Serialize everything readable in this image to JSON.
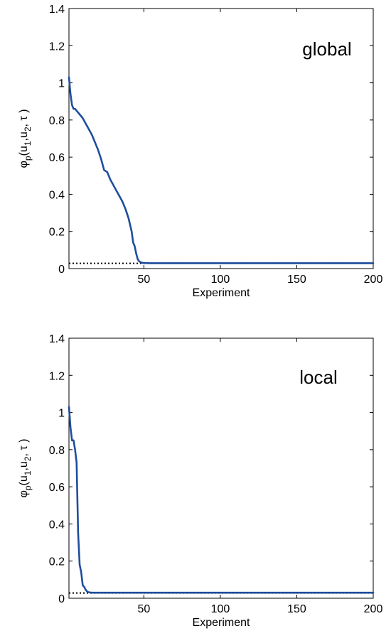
{
  "chart_data": [
    {
      "type": "line",
      "annotation": "global",
      "xlabel": "Experiment",
      "ylabel": "φp(u1,u2, τ)",
      "ylabel_parts": {
        "base": "φ",
        "sub_p": "p",
        "open": "(u",
        "sub_1": "1",
        "mid": ",u",
        "sub_2": "2",
        "close": ", τ )"
      },
      "xlim": [
        1,
        200
      ],
      "ylim": [
        0,
        1.4
      ],
      "xticks": [
        50,
        100,
        150,
        200
      ],
      "xtick_labels": [
        "50",
        "100",
        "150",
        "200"
      ],
      "yticks": [
        0,
        0.2,
        0.4,
        0.6,
        0.8,
        1,
        1.2,
        1.4
      ],
      "ytick_labels": [
        "0",
        "0.2",
        "0.4",
        "0.6",
        "0.8",
        "1",
        "1.2",
        "1.4"
      ],
      "grid": false,
      "reference_line": {
        "y": 0.028,
        "style": "dotted",
        "color": "#000000"
      },
      "series": [
        {
          "color": "#1f4e9c",
          "x": [
            1,
            2,
            3,
            4,
            5,
            6,
            7,
            8,
            10,
            12,
            14,
            16,
            18,
            20,
            22,
            24,
            26,
            27,
            28,
            30,
            32,
            34,
            36,
            38,
            40,
            42,
            43,
            44,
            45,
            46,
            47,
            48,
            49,
            50,
            51,
            52,
            53,
            54,
            56,
            60,
            70,
            80,
            100,
            150,
            200
          ],
          "y": [
            1.03,
            0.94,
            0.88,
            0.86,
            0.86,
            0.85,
            0.84,
            0.83,
            0.81,
            0.78,
            0.75,
            0.72,
            0.68,
            0.64,
            0.59,
            0.53,
            0.52,
            0.5,
            0.48,
            0.45,
            0.42,
            0.39,
            0.36,
            0.32,
            0.27,
            0.2,
            0.14,
            0.12,
            0.08,
            0.05,
            0.038,
            0.034,
            0.031,
            0.03,
            0.03,
            0.03,
            0.029,
            0.029,
            0.029,
            0.029,
            0.029,
            0.029,
            0.029,
            0.029,
            0.029
          ]
        }
      ]
    },
    {
      "type": "line",
      "annotation": "local",
      "xlabel": "Experiment",
      "ylabel": "φp(u1,u2, τ)",
      "ylabel_parts": {
        "base": "φ",
        "sub_p": "p",
        "open": "(u",
        "sub_1": "1",
        "mid": ",u",
        "sub_2": "2",
        "close": ", τ )"
      },
      "xlim": [
        1,
        200
      ],
      "ylim": [
        0,
        1.4
      ],
      "xticks": [
        50,
        100,
        150,
        200
      ],
      "xtick_labels": [
        "50",
        "100",
        "150",
        "200"
      ],
      "yticks": [
        0,
        0.2,
        0.4,
        0.6,
        0.8,
        1,
        1.2,
        1.4
      ],
      "ytick_labels": [
        "0",
        "0.2",
        "0.4",
        "0.6",
        "0.8",
        "1",
        "1.2",
        "1.4"
      ],
      "grid": false,
      "reference_line": {
        "y": 0.028,
        "style": "dotted",
        "color": "#000000"
      },
      "series": [
        {
          "color": "#1f4e9c",
          "x": [
            1,
            2,
            3,
            4,
            5,
            6,
            7,
            8,
            9,
            10,
            11,
            12,
            13,
            14,
            16,
            20,
            30,
            50,
            100,
            150,
            200
          ],
          "y": [
            1.03,
            0.92,
            0.85,
            0.85,
            0.8,
            0.73,
            0.35,
            0.18,
            0.14,
            0.07,
            0.06,
            0.045,
            0.035,
            0.032,
            0.03,
            0.03,
            0.03,
            0.03,
            0.03,
            0.03,
            0.03
          ]
        }
      ]
    }
  ]
}
